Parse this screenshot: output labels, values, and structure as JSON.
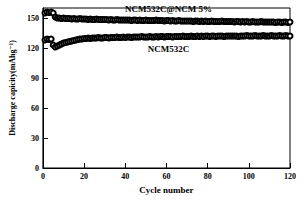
{
  "chart_data": {
    "type": "line",
    "x_label": "Cycle number",
    "y_label": "Discharge capicity(mAhg⁻¹)",
    "x": [
      1,
      2,
      3,
      4,
      5,
      6,
      7,
      8,
      9,
      10,
      11,
      12,
      13,
      14,
      15,
      16,
      17,
      18,
      19,
      20,
      21,
      22,
      23,
      24,
      25,
      26,
      27,
      28,
      29,
      30,
      31,
      32,
      33,
      34,
      35,
      36,
      37,
      38,
      39,
      40,
      41,
      42,
      43,
      44,
      45,
      46,
      47,
      48,
      49,
      50,
      51,
      52,
      53,
      54,
      55,
      56,
      57,
      58,
      59,
      60,
      61,
      62,
      63,
      64,
      65,
      66,
      67,
      68,
      69,
      70,
      71,
      72,
      73,
      74,
      75,
      76,
      77,
      78,
      79,
      80,
      81,
      82,
      83,
      84,
      85,
      86,
      87,
      88,
      89,
      90,
      91,
      92,
      93,
      94,
      95,
      96,
      97,
      98,
      99,
      100,
      101,
      102,
      103,
      104,
      105,
      106,
      107,
      108,
      109,
      110,
      111,
      112,
      113,
      114,
      115,
      116,
      117,
      118,
      119,
      120
    ],
    "series": [
      {
        "name": "NCM532C@NCM 5%",
        "color": "#000000",
        "marker": "circle",
        "values": [
          155,
          156,
          155.5,
          156,
          155,
          151,
          150,
          150,
          149.5,
          150,
          149.5,
          149.5,
          149.5,
          149,
          149.5,
          149,
          149,
          149.5,
          149,
          149,
          149,
          148.5,
          149,
          148.5,
          148.5,
          149,
          148.5,
          148.5,
          148.5,
          148.5,
          148.5,
          148,
          148.5,
          148,
          148,
          148.5,
          148,
          148,
          148,
          148,
          148,
          148,
          147.5,
          148,
          148,
          147.5,
          148,
          147.5,
          147.5,
          148,
          147.5,
          147.5,
          147.5,
          147.5,
          148,
          147.5,
          147.5,
          147.5,
          147,
          147.5,
          147.5,
          147,
          147.5,
          147,
          147,
          147.5,
          147,
          147,
          147,
          147,
          147,
          147,
          146.5,
          147,
          147,
          146.5,
          147,
          146.5,
          147,
          146.5,
          146.5,
          147,
          146.5,
          146.5,
          146.5,
          146.5,
          147,
          146.5,
          146.5,
          146.5,
          146.5,
          146.5,
          146,
          146.5,
          146.5,
          146,
          146.5,
          146,
          146.5,
          146,
          146,
          146.5,
          146,
          146,
          146,
          146.5,
          146,
          146,
          146,
          146,
          146,
          146,
          145.5,
          146,
          146,
          145.5,
          146,
          146,
          145.5,
          146
        ]
      },
      {
        "name": "NCM532C",
        "color": "#000000",
        "marker": "circle",
        "values": [
          128,
          129,
          128.5,
          129,
          123,
          121,
          122,
          123,
          124,
          125,
          125.5,
          126,
          126.5,
          127,
          127.5,
          128,
          128.5,
          129,
          129,
          129.5,
          129.5,
          130,
          129.5,
          130,
          130,
          130,
          130.5,
          130,
          130,
          130.5,
          130.5,
          130,
          130.5,
          130.5,
          130.5,
          131,
          130.5,
          130.5,
          131,
          130.5,
          131,
          131,
          130.5,
          131,
          131,
          131,
          131,
          131.5,
          131,
          131,
          131,
          131.5,
          131,
          131,
          131.5,
          131,
          131.5,
          131.5,
          131,
          131.5,
          131.5,
          131.5,
          131,
          131.5,
          131.5,
          131.5,
          131.5,
          132,
          131.5,
          131.5,
          131.5,
          132,
          131.5,
          131.5,
          132,
          131.5,
          132,
          131.5,
          132,
          132,
          131.5,
          132,
          132,
          131.5,
          132,
          132,
          132,
          131.5,
          132,
          132,
          132,
          132,
          132,
          132,
          131.5,
          132,
          132,
          132,
          132.5,
          132,
          132,
          132,
          132.5,
          132,
          132,
          132,
          132.5,
          132,
          132,
          132,
          132.5,
          132,
          132,
          132,
          132.5,
          132,
          132,
          132.5,
          132,
          132
        ]
      }
    ],
    "xlim": [
      0,
      120
    ],
    "xticks": [
      0,
      20,
      40,
      60,
      80,
      100,
      120
    ],
    "ylim": [
      0,
      160
    ],
    "yticks": [
      0,
      30,
      60,
      90,
      120,
      150
    ],
    "grid": false
  }
}
